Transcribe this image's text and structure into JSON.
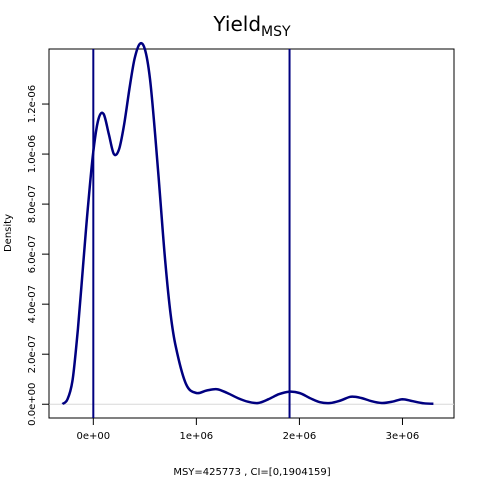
{
  "chart_data": {
    "type": "line",
    "title": "Yield",
    "title_subscript": "MSY",
    "ylabel": "Density",
    "xlabel": "MSY=425773 , CI=[0,1904159]",
    "xlim": [
      -430000,
      3500000
    ],
    "ylim": [
      -5.5e-08,
      1.42e-06
    ],
    "x_ticks": [
      {
        "value": 0,
        "label": "0e+00"
      },
      {
        "value": 1000000,
        "label": "1e+06"
      },
      {
        "value": 2000000,
        "label": "2e+06"
      },
      {
        "value": 3000000,
        "label": "3e+06"
      }
    ],
    "y_ticks": [
      {
        "value": 0,
        "label": "0.0e+00"
      },
      {
        "value": 2e-07,
        "label": "2.0e-07"
      },
      {
        "value": 4e-07,
        "label": "4.0e-07"
      },
      {
        "value": 6e-07,
        "label": "6.0e-07"
      },
      {
        "value": 8e-07,
        "label": "8.0e-07"
      },
      {
        "value": 1e-06,
        "label": "1.0e-06"
      },
      {
        "value": 1.2e-06,
        "label": "1.2e-06"
      }
    ],
    "series": [
      {
        "x": [
          -300000,
          -250000,
          -200000,
          -150000,
          -100000,
          -50000,
          0,
          50000,
          100000,
          150000,
          200000,
          250000,
          300000,
          350000,
          400000,
          450000,
          500000,
          550000,
          600000,
          650000,
          700000,
          750000,
          800000,
          900000,
          1000000,
          1100000,
          1200000,
          1300000,
          1400000,
          1500000,
          1600000,
          1700000,
          1800000,
          1900000,
          2000000,
          2100000,
          2200000,
          2300000,
          2400000,
          2500000,
          2600000,
          2700000,
          2800000,
          2900000,
          3000000,
          3100000,
          3200000,
          3300000
        ],
        "y": [
          1e-09,
          2e-08,
          1e-07,
          3e-07,
          5.5e-07,
          8e-07,
          1.01e-06,
          1.14e-06,
          1.16e-06,
          1.08e-06,
          1e-06,
          1.02e-06,
          1.12e-06,
          1.26e-06,
          1.38e-06,
          1.44e-06,
          1.42e-06,
          1.3e-06,
          1.08e-06,
          8.2e-07,
          5.6e-07,
          3.6e-07,
          2.3e-07,
          8e-08,
          4.5e-08,
          5.5e-08,
          6e-08,
          4.5e-08,
          2.5e-08,
          1e-08,
          5e-09,
          2e-08,
          4e-08,
          5e-08,
          4.5e-08,
          2.5e-08,
          8e-09,
          5e-09,
          1.5e-08,
          3e-08,
          2.5e-08,
          1.2e-08,
          5e-09,
          1e-08,
          2e-08,
          1.2e-08,
          4e-09,
          2e-09
        ]
      }
    ],
    "vlines": [
      0,
      1904159
    ],
    "hline": 0,
    "line_color": "#000080",
    "baseline_color": "#d8d8d8"
  }
}
